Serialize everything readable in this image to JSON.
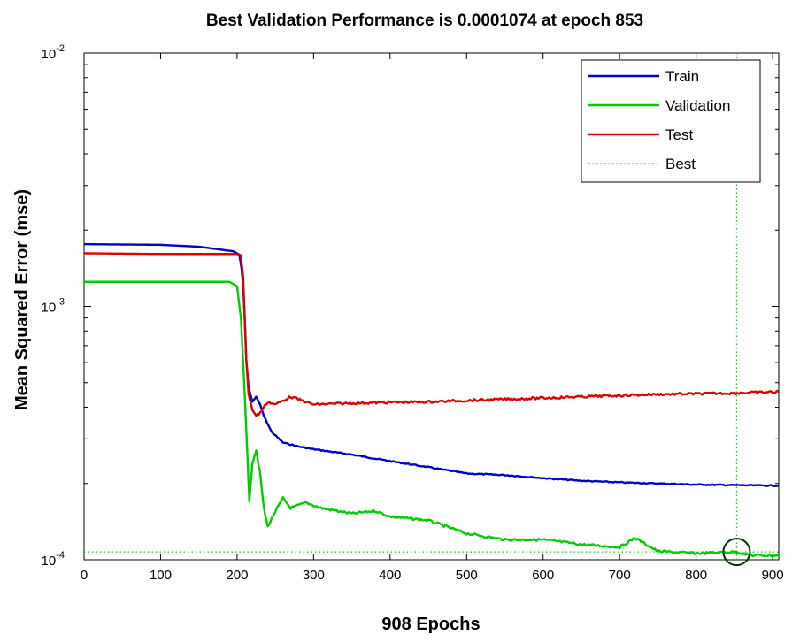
{
  "chart_data": {
    "type": "line",
    "title": "Best Validation Performance is 0.0001074 at epoch 853",
    "xlabel": "908 Epochs",
    "ylabel": "Mean Squared Error  (mse)",
    "xlim": [
      0,
      908
    ],
    "ylim": [
      0.0001,
      0.01
    ],
    "yscale": "log",
    "grid": false,
    "legend_position": "top-right",
    "x_ticks": [
      0,
      100,
      200,
      300,
      400,
      500,
      600,
      700,
      800,
      900
    ],
    "y_ticks": [
      {
        "value": 0.0001,
        "base": "10",
        "exp": "-4"
      },
      {
        "value": 0.001,
        "base": "10",
        "exp": "-3"
      },
      {
        "value": 0.01,
        "base": "10",
        "exp": "-2"
      }
    ],
    "series": [
      {
        "name": "Train",
        "color": "#0000cc",
        "style": "solid",
        "points": [
          [
            0,
            0.00176
          ],
          [
            100,
            0.00175
          ],
          [
            150,
            0.00172
          ],
          [
            195,
            0.00165
          ],
          [
            203,
            0.0016
          ],
          [
            206,
            0.0014
          ],
          [
            208,
            0.0012
          ],
          [
            210,
            0.0009
          ],
          [
            212,
            0.00062
          ],
          [
            215,
            0.00048
          ],
          [
            220,
            0.00042
          ],
          [
            225,
            0.00044
          ],
          [
            230,
            0.00041
          ],
          [
            235,
            0.00037
          ],
          [
            245,
            0.00032
          ],
          [
            260,
            0.00029
          ],
          [
            280,
            0.00028
          ],
          [
            300,
            0.000273
          ],
          [
            350,
            0.00026
          ],
          [
            400,
            0.000245
          ],
          [
            450,
            0.000232
          ],
          [
            500,
            0.000219
          ],
          [
            550,
            0.000216
          ],
          [
            600,
            0.00021
          ],
          [
            650,
            0.000205
          ],
          [
            700,
            0.000202
          ],
          [
            750,
            0.0002
          ],
          [
            800,
            0.000198
          ],
          [
            850,
            0.000197
          ],
          [
            908,
            0.000196
          ]
        ]
      },
      {
        "name": "Validation",
        "color": "#00cc00",
        "style": "solid",
        "points": [
          [
            0,
            0.00125
          ],
          [
            100,
            0.00125
          ],
          [
            150,
            0.00125
          ],
          [
            190,
            0.00125
          ],
          [
            200,
            0.0012
          ],
          [
            205,
            0.0009
          ],
          [
            208,
            0.0006
          ],
          [
            210,
            0.00045
          ],
          [
            213,
            0.00028
          ],
          [
            216,
            0.00017
          ],
          [
            220,
            0.00024
          ],
          [
            225,
            0.00027
          ],
          [
            230,
            0.00022
          ],
          [
            235,
            0.00016
          ],
          [
            240,
            0.000135
          ],
          [
            250,
            0.000155
          ],
          [
            260,
            0.000175
          ],
          [
            270,
            0.00016
          ],
          [
            290,
            0.000168
          ],
          [
            310,
            0.00016
          ],
          [
            350,
            0.000152
          ],
          [
            380,
            0.000156
          ],
          [
            400,
            0.000148
          ],
          [
            450,
            0.000143
          ],
          [
            500,
            0.000127
          ],
          [
            550,
            0.00012
          ],
          [
            600,
            0.00012
          ],
          [
            650,
            0.000115
          ],
          [
            700,
            0.000112
          ],
          [
            720,
            0.000122
          ],
          [
            750,
            0.000108
          ],
          [
            800,
            0.000106
          ],
          [
            853,
            0.0001074
          ],
          [
            870,
            0.000104
          ],
          [
            908,
            0.000104
          ]
        ]
      },
      {
        "name": "Test",
        "color": "#dd0000",
        "style": "solid",
        "points": [
          [
            0,
            0.00162
          ],
          [
            100,
            0.00161
          ],
          [
            150,
            0.00161
          ],
          [
            200,
            0.00161
          ],
          [
            205,
            0.00159
          ],
          [
            208,
            0.0013
          ],
          [
            210,
            0.0009
          ],
          [
            212,
            0.00062
          ],
          [
            215,
            0.00045
          ],
          [
            220,
            0.00039
          ],
          [
            225,
            0.00037
          ],
          [
            230,
            0.00038
          ],
          [
            240,
            0.00042
          ],
          [
            250,
            0.00041
          ],
          [
            270,
            0.00044
          ],
          [
            300,
            0.00041
          ],
          [
            350,
            0.000415
          ],
          [
            400,
            0.000418
          ],
          [
            450,
            0.00042
          ],
          [
            500,
            0.000425
          ],
          [
            550,
            0.00043
          ],
          [
            600,
            0.000435
          ],
          [
            650,
            0.00044
          ],
          [
            700,
            0.000445
          ],
          [
            750,
            0.00045
          ],
          [
            800,
            0.000452
          ],
          [
            850,
            0.000455
          ],
          [
            908,
            0.00046
          ]
        ]
      },
      {
        "name": "Best",
        "color": "#00cc00",
        "style": "dotted",
        "best_epoch": 853,
        "best_value": 0.0001074
      }
    ]
  }
}
